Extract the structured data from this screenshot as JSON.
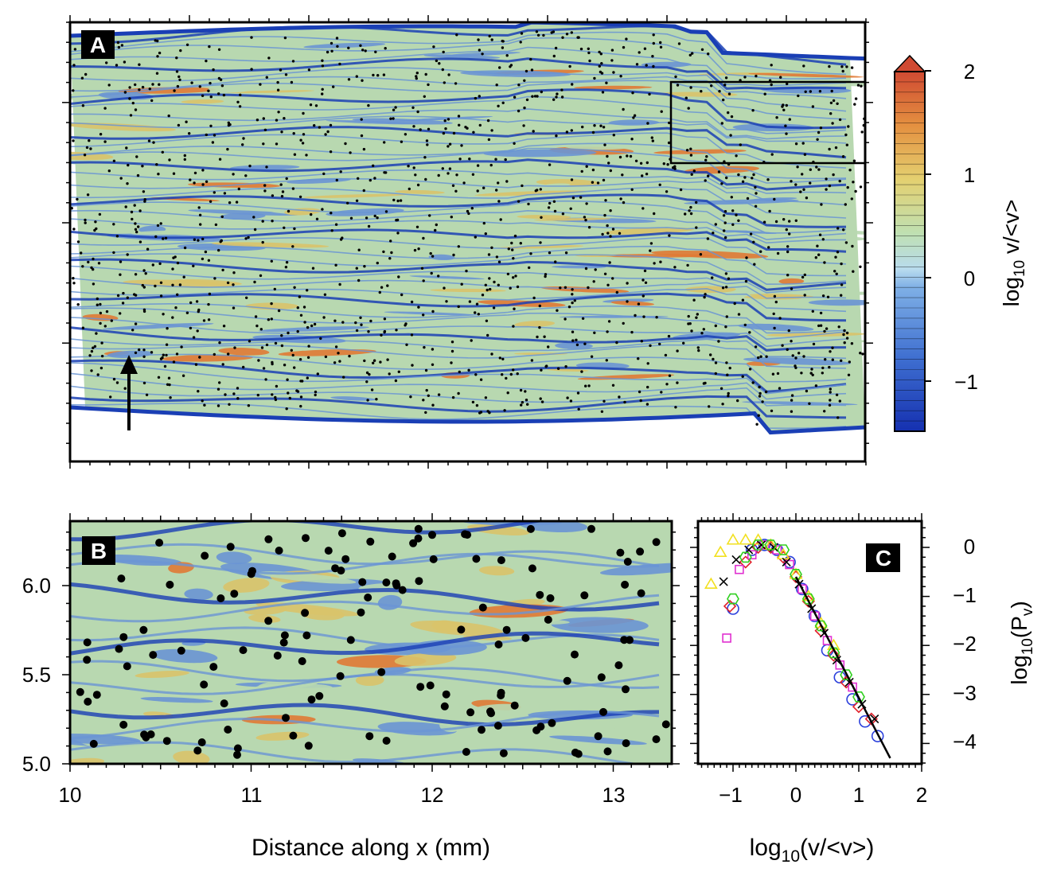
{
  "panels": {
    "a": {
      "label": "A"
    },
    "b": {
      "label": "B",
      "x_ticks": [
        "10",
        "11",
        "12",
        "13"
      ],
      "y_ticks": [
        "5.0",
        "5.5",
        "6.0"
      ]
    },
    "c": {
      "label": "C",
      "x_ticks": [
        "−1",
        "0",
        "1",
        "2"
      ],
      "y_ticks": [
        "0",
        "−1",
        "−2",
        "−3",
        "−4"
      ]
    }
  },
  "colorbar": {
    "ticks": [
      "2",
      "1",
      "0",
      "−1"
    ]
  },
  "axes": {
    "b_xlabel": "Distance along x (mm)"
  },
  "chart_data": [
    {
      "type": "heatmap",
      "panel": "A",
      "description_source": "color map of log10 v/<v> over the full sample, with black dots marking particles",
      "colorbar": {
        "min": -1.5,
        "max": 2,
        "ticks": [
          2,
          1,
          0,
          -1
        ],
        "extend": "max",
        "label": "log10 v/<v>"
      },
      "x_range_mm": [
        6.7,
        13.3
      ],
      "colors": {
        "high": "#e07a35",
        "mid_high": "#d9c36a",
        "mid": "#b8d8b0",
        "low": "#6a95d4",
        "very_low": "#1a3fb5"
      }
    },
    {
      "type": "heatmap",
      "panel": "B",
      "xlabel": "Distance along x (mm)",
      "x_range_mm": [
        10,
        13.3
      ],
      "y_range_mm": [
        5.0,
        6.35
      ],
      "x_ticks": [
        10,
        11,
        12,
        13
      ],
      "y_ticks": [
        5.0,
        5.5,
        6.0
      ]
    },
    {
      "type": "scatter",
      "panel": "C",
      "xlabel": "log10(v/<v>)",
      "ylabel": "log10(Pv)",
      "xlim": [
        -1.5,
        2
      ],
      "ylim": [
        -4.4,
        0.4
      ],
      "series": [
        {
          "marker": "circle",
          "color": "#2a3fdc",
          "x": [
            -1.0,
            -0.7,
            -0.5,
            -0.3,
            -0.1,
            0.1,
            0.3,
            0.5,
            0.7,
            0.9,
            1.1,
            1.3
          ],
          "y": [
            -1.25,
            -0.05,
            0.05,
            -0.05,
            -0.3,
            -0.85,
            -1.4,
            -2.1,
            -2.65,
            -3.1,
            -3.55,
            -3.85
          ]
        },
        {
          "marker": "diamond",
          "color": "#e0202a",
          "x": [
            -1.05,
            -0.8,
            -0.6,
            -0.4,
            -0.2,
            0.0,
            0.2,
            0.4,
            0.6,
            0.8,
            1.0,
            1.2
          ],
          "y": [
            -1.2,
            -0.3,
            0.0,
            0.0,
            -0.2,
            -0.6,
            -1.1,
            -1.7,
            -2.2,
            -2.75,
            -3.25,
            -3.5
          ]
        },
        {
          "marker": "square",
          "color": "#e030d0",
          "x": [
            -1.1,
            -0.9,
            -0.7,
            -0.5,
            -0.3,
            -0.1,
            0.1,
            0.3,
            0.5,
            0.7,
            0.9
          ],
          "y": [
            -1.85,
            -0.45,
            -0.15,
            0.05,
            -0.05,
            -0.35,
            -0.85,
            -1.4,
            -1.9,
            -2.4,
            -2.85
          ]
        },
        {
          "marker": "triangle",
          "color": "#f2e020",
          "x": [
            -1.35,
            -1.2,
            -1.0,
            -0.8,
            -0.6,
            -0.4,
            -0.2,
            0.0,
            0.2,
            0.4,
            0.6
          ],
          "y": [
            -0.75,
            -0.1,
            0.15,
            0.15,
            0.15,
            0.05,
            -0.15,
            -0.55,
            -1.0,
            -1.55,
            -2.0
          ]
        },
        {
          "marker": "cross",
          "color": "#000000",
          "x": [
            -1.15,
            -0.95,
            -0.75,
            -0.55,
            -0.35,
            -0.15,
            0.05,
            0.25,
            0.45,
            0.65,
            0.85,
            1.05,
            1.25
          ],
          "y": [
            -0.7,
            -0.25,
            -0.05,
            0.05,
            0.0,
            -0.3,
            -0.75,
            -1.25,
            -1.75,
            -2.3,
            -2.75,
            -3.2,
            -3.5
          ]
        },
        {
          "marker": "hexagon",
          "color": "#30d020",
          "x": [
            -1.0,
            -0.8,
            -0.6,
            -0.4,
            -0.2,
            0.0,
            0.2,
            0.4,
            0.6,
            0.8,
            1.0
          ],
          "y": [
            -1.05,
            -0.2,
            0.05,
            0.05,
            -0.05,
            -0.55,
            -1.05,
            -1.6,
            -2.15,
            -2.6,
            -3.05
          ]
        }
      ],
      "fit_line": {
        "x": [
          0.0,
          1.5
        ],
        "y": [
          -0.6,
          -4.3
        ]
      }
    }
  ]
}
